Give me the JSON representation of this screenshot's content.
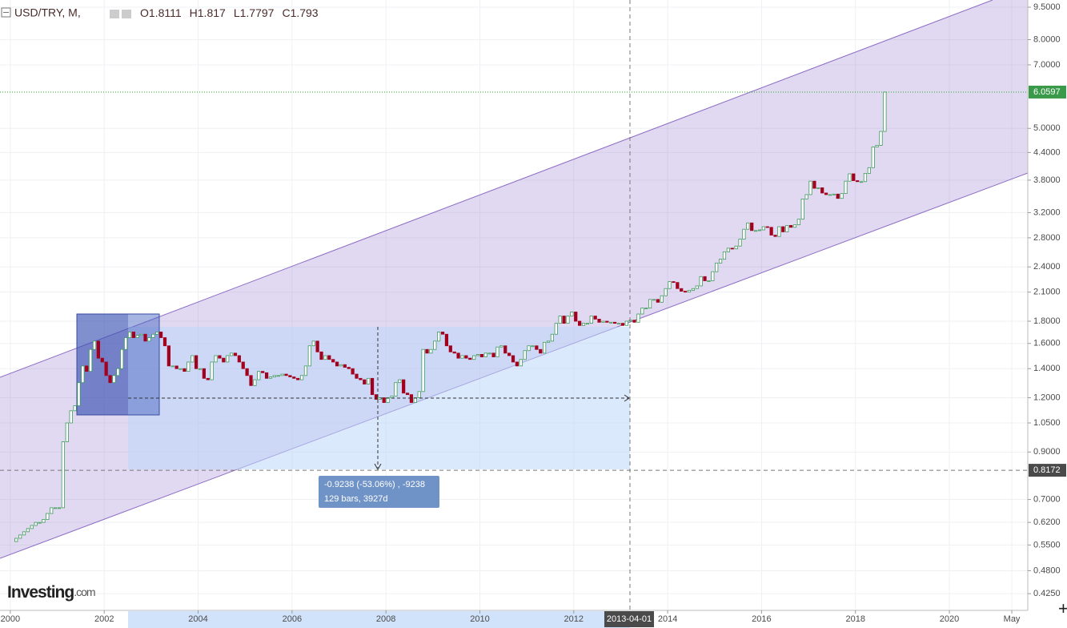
{
  "chart_data": {
    "type": "candlestick",
    "symbol": "USD/TRY, M,",
    "ohlc": [
      {
        "label": "O",
        "value": 1.8111
      },
      {
        "label": "H",
        "value": 1.817
      },
      {
        "label": "L",
        "value": 1.7797
      },
      {
        "label": "C",
        "value": 1.793
      }
    ],
    "log_scale": true,
    "grid": true,
    "up_color": "#3d9a5a",
    "down_color": "#a3001e",
    "start": 2000,
    "values": [
      0.56,
      0.57,
      0.58,
      0.59,
      0.6,
      0.61,
      0.62,
      0.62,
      0.63,
      0.65,
      0.67,
      0.67,
      0.67,
      0.95,
      1.05,
      1.12,
      1.15,
      1.3,
      1.42,
      1.38,
      1.55,
      1.62,
      1.48,
      1.45,
      1.35,
      1.3,
      1.35,
      1.4,
      1.55,
      1.65,
      1.7,
      1.65,
      1.67,
      1.68,
      1.62,
      1.65,
      1.68,
      1.7,
      1.65,
      1.58,
      1.42,
      1.42,
      1.4,
      1.4,
      1.38,
      1.45,
      1.5,
      1.4,
      1.4,
      1.33,
      1.32,
      1.45,
      1.5,
      1.48,
      1.45,
      1.5,
      1.52,
      1.5,
      1.45,
      1.4,
      1.35,
      1.28,
      1.32,
      1.38,
      1.37,
      1.33,
      1.34,
      1.35,
      1.35,
      1.36,
      1.35,
      1.34,
      1.33,
      1.32,
      1.35,
      1.42,
      1.58,
      1.62,
      1.53,
      1.47,
      1.5,
      1.47,
      1.45,
      1.42,
      1.43,
      1.41,
      1.4,
      1.36,
      1.33,
      1.32,
      1.29,
      1.33,
      1.22,
      1.19,
      1.2,
      1.17,
      1.2,
      1.21,
      1.3,
      1.32,
      1.23,
      1.22,
      1.17,
      1.2,
      1.24,
      1.55,
      1.52,
      1.55,
      1.62,
      1.7,
      1.68,
      1.58,
      1.53,
      1.52,
      1.48,
      1.5,
      1.48,
      1.47,
      1.5,
      1.51,
      1.49,
      1.52,
      1.52,
      1.49,
      1.57,
      1.58,
      1.52,
      1.5,
      1.45,
      1.42,
      1.47,
      1.54,
      1.58,
      1.58,
      1.55,
      1.52,
      1.61,
      1.62,
      1.68,
      1.78,
      1.85,
      1.78,
      1.85,
      1.89,
      1.8,
      1.76,
      1.78,
      1.78,
      1.85,
      1.82,
      1.79,
      1.8,
      1.79,
      1.79,
      1.78,
      1.78,
      1.76,
      1.8,
      1.81,
      1.79,
      1.87,
      1.93,
      1.93,
      2.02,
      2.02,
      1.99,
      2.06,
      2.14,
      2.22,
      2.21,
      2.14,
      2.11,
      2.1,
      2.12,
      2.14,
      2.17,
      2.28,
      2.23,
      2.23,
      2.34,
      2.45,
      2.5,
      2.6,
      2.65,
      2.64,
      2.68,
      2.78,
      2.93,
      3.03,
      2.91,
      2.91,
      2.92,
      2.97,
      2.96,
      2.84,
      2.82,
      2.97,
      2.89,
      2.99,
      2.96,
      3.0,
      3.09,
      3.44,
      3.52,
      3.78,
      3.64,
      3.65,
      3.55,
      3.52,
      3.52,
      3.53,
      3.45,
      3.54,
      3.78,
      3.93,
      3.79,
      3.77,
      3.77,
      3.94,
      4.06,
      4.53,
      4.57,
      4.92,
      6.06
    ],
    "ylim": [
      0.389,
      9.87
    ],
    "yticks": [
      {
        "value": 9.5,
        "label": "9.5000"
      },
      {
        "value": 8,
        "label": "8.0000"
      },
      {
        "value": 7,
        "label": "7.0000"
      },
      {
        "value": 5,
        "label": "5.0000"
      },
      {
        "value": 4.4,
        "label": "4.4000"
      },
      {
        "value": 3.8,
        "label": "3.8000"
      },
      {
        "value": 3.2,
        "label": "3.2000"
      },
      {
        "value": 2.8,
        "label": "2.8000"
      },
      {
        "value": 2.4,
        "label": "2.4000"
      },
      {
        "value": 2.1,
        "label": "2.1000"
      },
      {
        "value": 1.8,
        "label": "1.8000"
      },
      {
        "value": 1.6,
        "label": "1.6000"
      },
      {
        "value": 1.4,
        "label": "1.4000"
      },
      {
        "value": 1.2,
        "label": "1.2000"
      },
      {
        "value": 1.05,
        "label": "1.0500"
      },
      {
        "value": 0.9,
        "label": "0.9000"
      },
      {
        "value": 0.7,
        "label": "0.7000"
      },
      {
        "value": 0.62,
        "label": "0.6200"
      },
      {
        "value": 0.55,
        "label": "0.5500"
      },
      {
        "value": 0.48,
        "label": "0.4800"
      },
      {
        "value": 0.425,
        "label": "0.4250"
      }
    ],
    "xlim": [
      1999.78,
      2021.67
    ],
    "xticks": [
      2000,
      2002,
      2004,
      2006,
      2008,
      2010,
      2012,
      2014,
      2016,
      2018,
      2020,
      {
        "value": 2021.33,
        "label": "May"
      }
    ],
    "last_price": 6.0597,
    "cursor_price": 0.8172,
    "cursor_date": "2013-04-01",
    "measure": [
      "-0.9238 (-53.06%) , -9238",
      "129 bars, 3927d"
    ],
    "logo": [
      "Investing",
      ".com"
    ]
  }
}
